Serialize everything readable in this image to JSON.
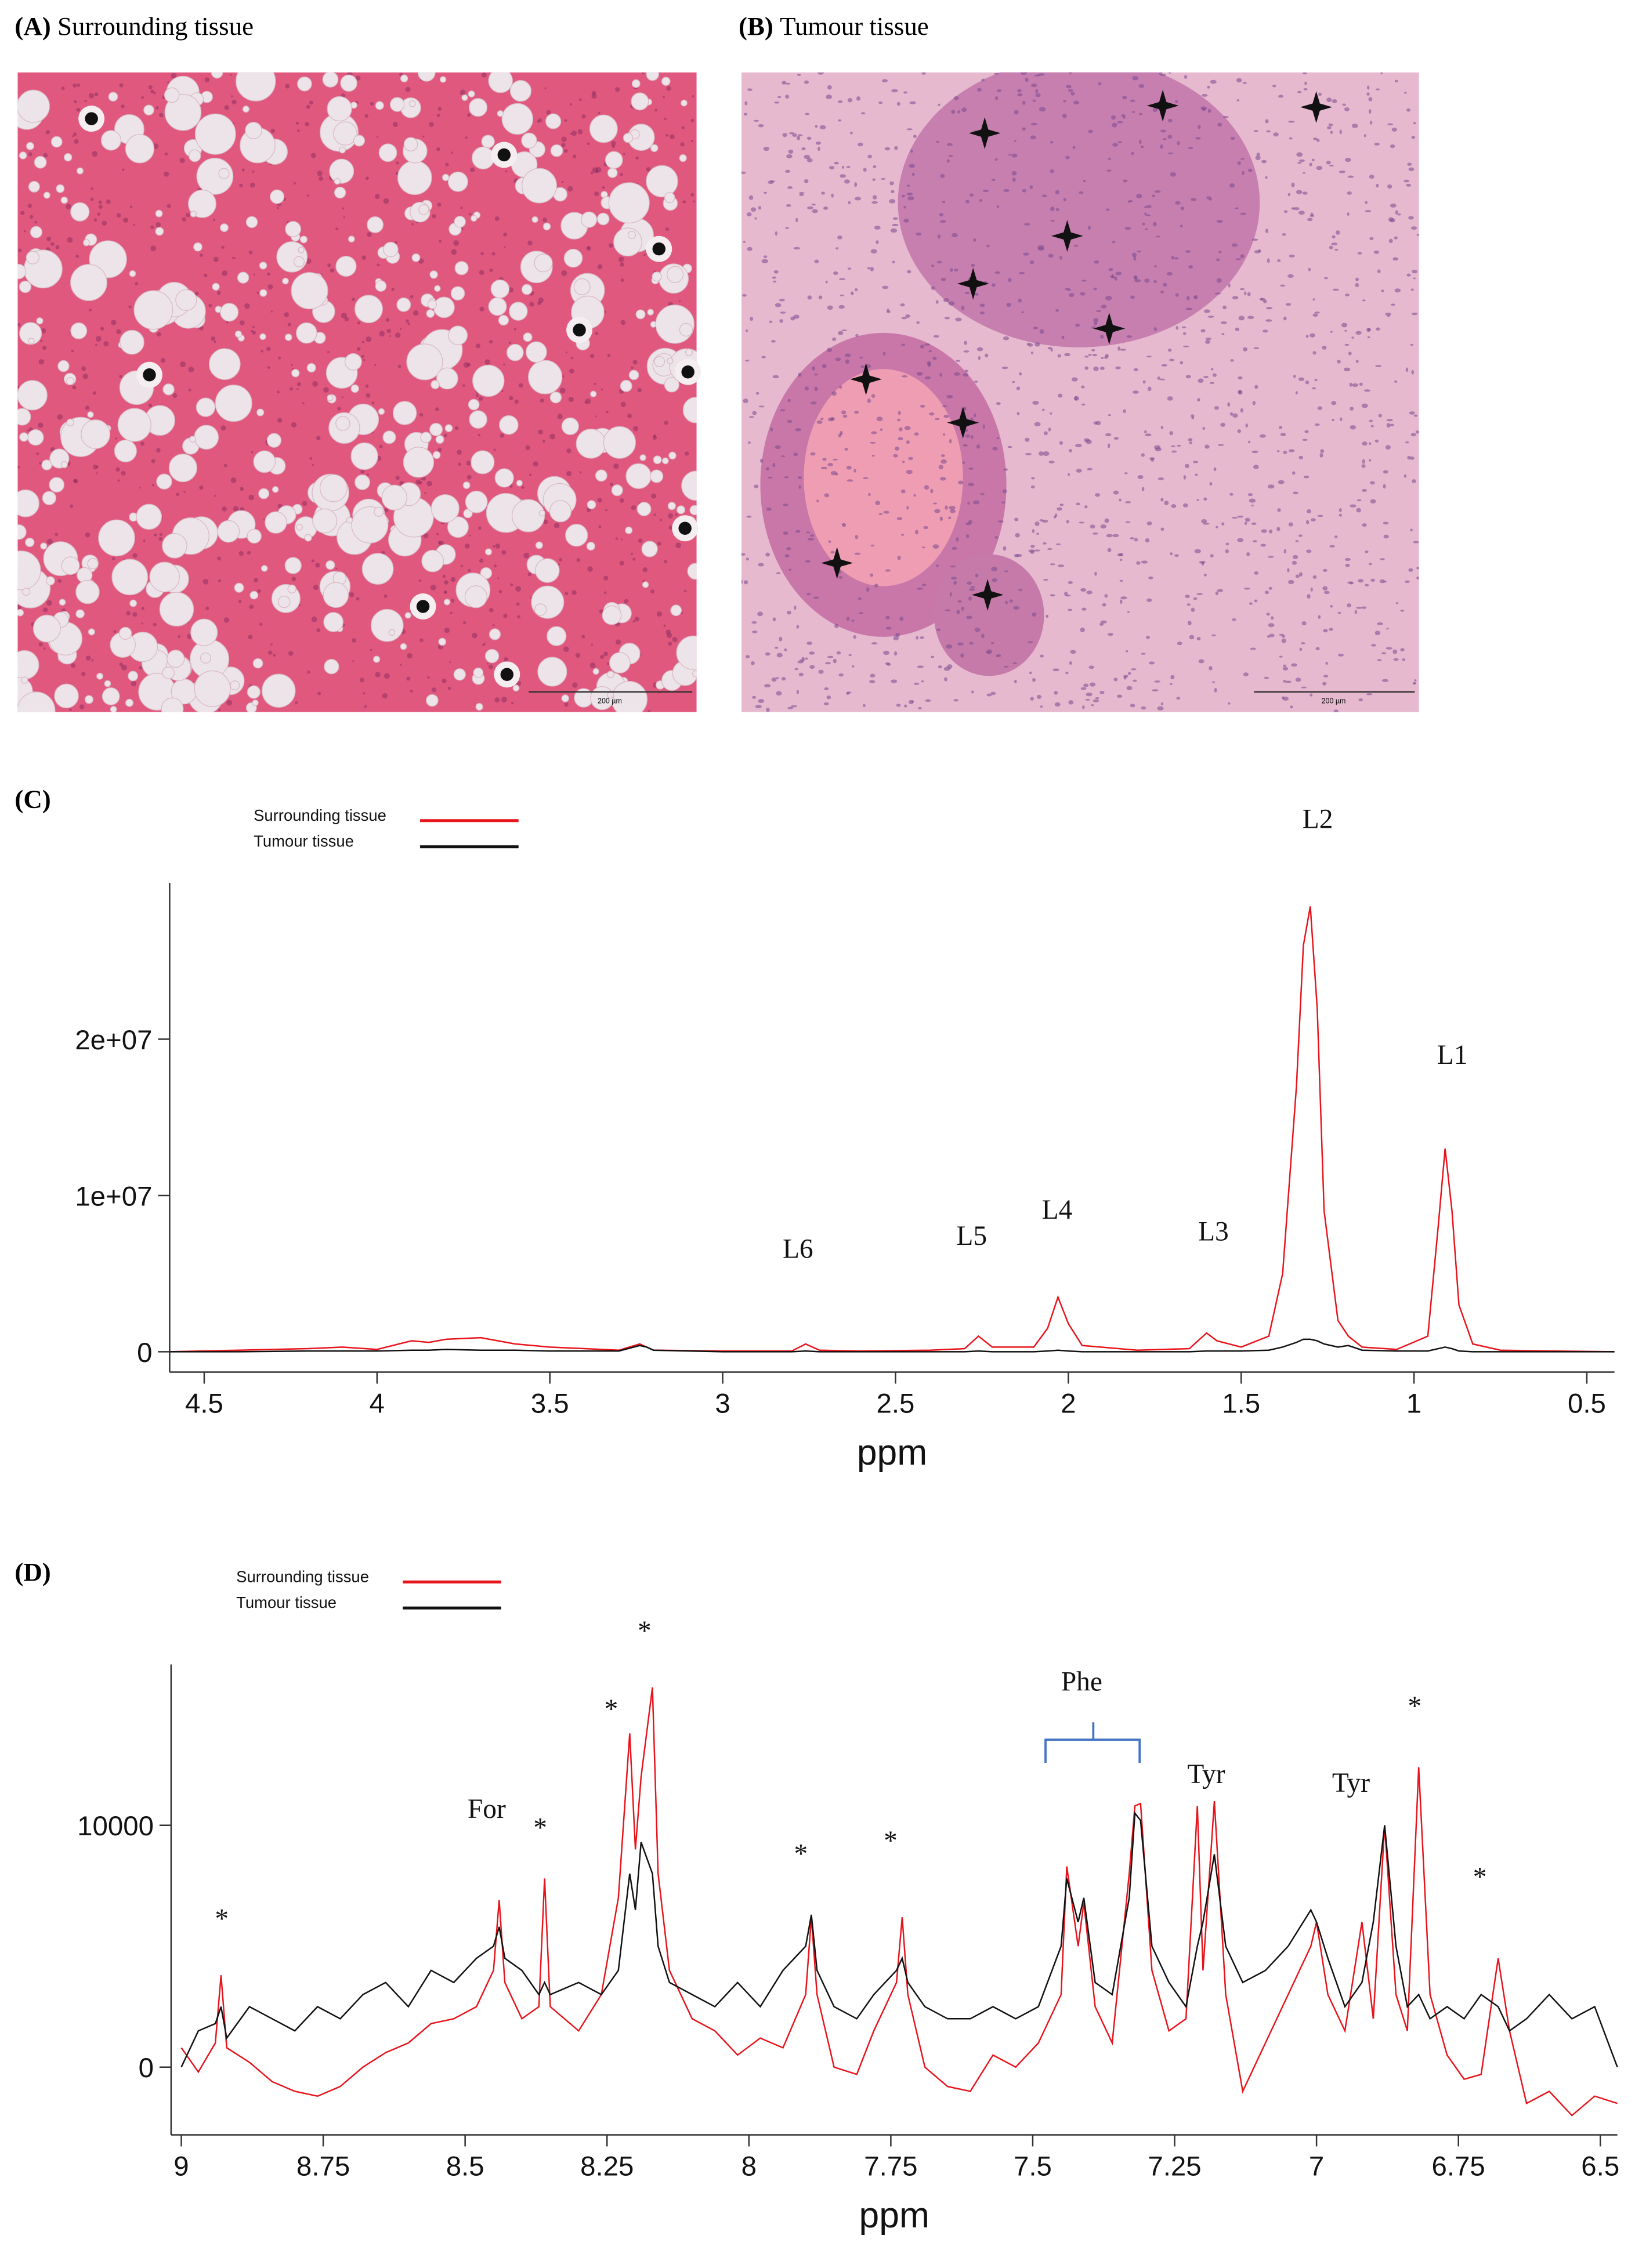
{
  "panels": [
    {
      "label": "(A)",
      "title": "Surrounding tissue",
      "scale_bar": "200 µm"
    },
    {
      "label": "(B)",
      "title": "Tumour tissue",
      "scale_bar": "200 µm"
    }
  ],
  "chart_data": [
    {
      "type": "line",
      "panel_label": "(C)",
      "xlabel": "ppm",
      "xlim": [
        4.6,
        0.42
      ],
      "ylim": [
        -1300000,
        30000000
      ],
      "xticks": [
        4.5,
        4,
        3.5,
        3,
        2.5,
        2,
        1.5,
        1,
        0.5
      ],
      "yticks": [
        0,
        {
          "value": 10000000,
          "label": "1e+07"
        },
        {
          "value": 20000000,
          "label": "2e+07"
        }
      ],
      "legend": "top-left",
      "annotations": [
        "L1",
        "L2",
        "L3",
        "L4",
        "L5",
        "L6"
      ],
      "x": [
        4.6,
        4.4,
        4.2,
        4.1,
        4.0,
        3.9,
        3.85,
        3.8,
        3.7,
        3.6,
        3.5,
        3.4,
        3.3,
        3.24,
        3.22,
        3.2,
        3.0,
        2.8,
        2.76,
        2.72,
        2.6,
        2.4,
        2.3,
        2.26,
        2.22,
        2.1,
        2.06,
        2.03,
        2.0,
        1.96,
        1.8,
        1.65,
        1.6,
        1.57,
        1.5,
        1.42,
        1.38,
        1.34,
        1.32,
        1.3,
        1.28,
        1.26,
        1.22,
        1.19,
        1.15,
        1.05,
        0.96,
        0.93,
        0.91,
        0.89,
        0.87,
        0.83,
        0.75,
        0.6,
        0.42
      ],
      "series": [
        {
          "name": "Surrounding tissue",
          "color": "#e8141c",
          "values": [
            0,
            100000,
            200000,
            300000,
            150000,
            700000,
            600000,
            800000,
            900000,
            500000,
            300000,
            200000,
            100000,
            500000,
            300000,
            100000,
            50000,
            50000,
            500000,
            100000,
            50000,
            100000,
            200000,
            1000000,
            300000,
            300000,
            1500000,
            3500000,
            1800000,
            400000,
            100000,
            200000,
            1200000,
            700000,
            300000,
            1000000,
            5000000,
            17000000,
            26000000,
            28500000,
            22000000,
            9000000,
            2000000,
            1000000,
            300000,
            150000,
            1000000,
            8000000,
            13000000,
            9000000,
            3000000,
            500000,
            100000,
            50000,
            0
          ]
        },
        {
          "name": "Tumour tissue",
          "color": "#111111",
          "values": [
            0,
            0,
            50000,
            50000,
            50000,
            100000,
            100000,
            150000,
            100000,
            100000,
            50000,
            50000,
            50000,
            400000,
            300000,
            100000,
            0,
            0,
            50000,
            0,
            0,
            0,
            0,
            50000,
            0,
            0,
            50000,
            100000,
            50000,
            0,
            0,
            0,
            50000,
            50000,
            50000,
            100000,
            300000,
            600000,
            800000,
            800000,
            700000,
            500000,
            300000,
            400000,
            100000,
            50000,
            50000,
            200000,
            300000,
            200000,
            50000,
            0,
            0,
            0,
            0
          ]
        }
      ]
    },
    {
      "type": "line",
      "panel_label": "(D)",
      "xlabel": "ppm",
      "xlim": [
        9.018,
        6.47
      ],
      "ylim": [
        -2800,
        16650
      ],
      "xticks": [
        9,
        8.75,
        8.5,
        8.25,
        8,
        7.75,
        7.5,
        7.25,
        7,
        6.75,
        6.5
      ],
      "yticks": [
        0,
        10000
      ],
      "legend": "top-left",
      "annotations": [
        "*",
        "For",
        "*",
        "*",
        "*",
        "*",
        "*",
        "Phe",
        "Tyr",
        "Tyr",
        "*",
        "*"
      ],
      "x": [
        9.0,
        8.97,
        8.94,
        8.93,
        8.92,
        8.88,
        8.84,
        8.8,
        8.76,
        8.72,
        8.68,
        8.64,
        8.6,
        8.56,
        8.52,
        8.48,
        8.45,
        8.44,
        8.43,
        8.4,
        8.37,
        8.36,
        8.35,
        8.3,
        8.26,
        8.23,
        8.21,
        8.2,
        8.19,
        8.17,
        8.16,
        8.14,
        8.1,
        8.06,
        8.02,
        7.98,
        7.94,
        7.9,
        7.89,
        7.88,
        7.85,
        7.81,
        7.78,
        7.74,
        7.73,
        7.72,
        7.69,
        7.65,
        7.61,
        7.57,
        7.53,
        7.49,
        7.45,
        7.44,
        7.42,
        7.41,
        7.39,
        7.36,
        7.33,
        7.32,
        7.31,
        7.29,
        7.26,
        7.23,
        7.21,
        7.2,
        7.18,
        7.16,
        7.13,
        7.09,
        7.05,
        7.01,
        7.0,
        6.98,
        6.95,
        6.92,
        6.9,
        6.88,
        6.86,
        6.84,
        6.82,
        6.8,
        6.77,
        6.74,
        6.71,
        6.68,
        6.66,
        6.63,
        6.59,
        6.55,
        6.51,
        6.47
      ],
      "series": [
        {
          "name": "Surrounding tissue",
          "color": "#e8141c",
          "values": [
            800,
            -200,
            1000,
            3800,
            800,
            200,
            -600,
            -1000,
            -1200,
            -800,
            0,
            600,
            1000,
            1800,
            2000,
            2500,
            4000,
            6900,
            3500,
            2000,
            2500,
            7800,
            2500,
            1500,
            3000,
            7000,
            13800,
            9000,
            12000,
            15700,
            8000,
            4000,
            2000,
            1500,
            500,
            1200,
            800,
            3000,
            6200,
            3000,
            0,
            -300,
            1500,
            3500,
            6200,
            3000,
            0,
            -800,
            -1000,
            500,
            0,
            1000,
            3000,
            8300,
            5000,
            6800,
            2500,
            1000,
            8000,
            10800,
            10900,
            4000,
            1500,
            2000,
            10800,
            4000,
            11000,
            3000,
            -1000,
            1000,
            3000,
            5000,
            6000,
            3000,
            1500,
            6000,
            2000,
            10000,
            3000,
            1500,
            12400,
            3000,
            500,
            -500,
            -300,
            4500,
            1500,
            -1500,
            -1000,
            -2000,
            -1200,
            -1500
          ]
        },
        {
          "name": "Tumour tissue",
          "color": "#111111",
          "values": [
            0,
            1500,
            1800,
            2500,
            1200,
            2500,
            2000,
            1500,
            2500,
            2000,
            3000,
            3500,
            2500,
            4000,
            3500,
            4500,
            5000,
            5800,
            4500,
            4000,
            3000,
            3500,
            3000,
            3500,
            3000,
            4000,
            8000,
            6500,
            9300,
            8000,
            5000,
            3500,
            3000,
            2500,
            3500,
            2500,
            4000,
            5000,
            6300,
            4000,
            2500,
            2000,
            3000,
            4000,
            4500,
            3500,
            2500,
            2000,
            2000,
            2500,
            2000,
            2500,
            5000,
            7800,
            6000,
            7000,
            3500,
            3000,
            7000,
            10500,
            10200,
            5000,
            3500,
            2500,
            5000,
            6000,
            8800,
            5000,
            3500,
            4000,
            5000,
            6500,
            6000,
            4500,
            2500,
            3500,
            6000,
            10000,
            5000,
            2500,
            3000,
            2000,
            2500,
            2000,
            3000,
            2500,
            1500,
            2000,
            3000,
            2000,
            2500,
            0
          ]
        }
      ]
    }
  ]
}
